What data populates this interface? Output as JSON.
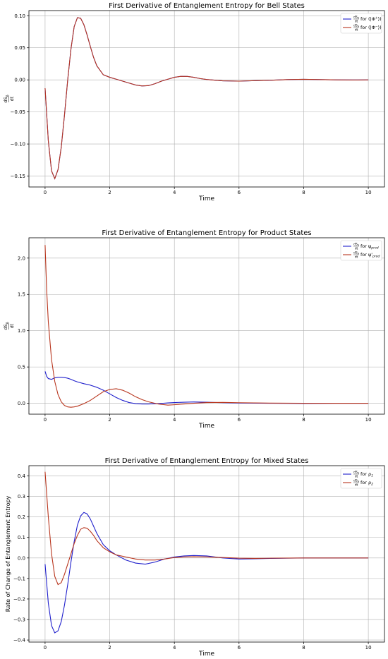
{
  "chart_data": [
    {
      "type": "line",
      "title": "First Derivative of Entanglement Entropy for Bell States",
      "xlabel": "Time",
      "ylabel": "dS_A / dt",
      "xlim": [
        -0.5,
        10.5
      ],
      "ylim": [
        -0.167,
        0.108
      ],
      "xticks": [
        0,
        2,
        4,
        6,
        8,
        10
      ],
      "yticks": [
        -0.15,
        -0.1,
        -0.05,
        0.0,
        0.05,
        0.1
      ],
      "ytick_labels": [
        "−0.15",
        "−0.10",
        "−0.05",
        "0.00",
        "0.05",
        "0.10"
      ],
      "grid": true,
      "legend_position": "top-right",
      "x": [
        0,
        0.1,
        0.2,
        0.3,
        0.4,
        0.5,
        0.6,
        0.7,
        0.8,
        0.9,
        1.0,
        1.1,
        1.2,
        1.3,
        1.4,
        1.5,
        1.6,
        1.8,
        2.0,
        2.2,
        2.4,
        2.6,
        2.8,
        3.0,
        3.2,
        3.4,
        3.6,
        3.8,
        4.0,
        4.2,
        4.4,
        4.6,
        4.8,
        5.0,
        5.5,
        6.0,
        6.5,
        7.0,
        7.5,
        8.0,
        8.5,
        9.0,
        9.5,
        10.0
      ],
      "series": [
        {
          "name": "dS_A/dt for |Φ+⟩",
          "color": "#1f1fcc",
          "values": [
            -0.013,
            -0.095,
            -0.142,
            -0.154,
            -0.14,
            -0.105,
            -0.055,
            0.0,
            0.048,
            0.083,
            0.097,
            0.096,
            0.086,
            0.07,
            0.052,
            0.035,
            0.022,
            0.008,
            0.004,
            0.001,
            -0.002,
            -0.005,
            -0.008,
            -0.0095,
            -0.009,
            -0.006,
            -0.002,
            0.001,
            0.004,
            0.0055,
            0.0053,
            0.004,
            0.002,
            0.0005,
            -0.0015,
            -0.002,
            -0.0012,
            -0.0005,
            0.0004,
            0.0008,
            0.0004,
            0.0,
            -0.0002,
            0.0
          ]
        },
        {
          "name": "dS_A/dt for |Φ−⟩",
          "color": "#b8361e",
          "values": [
            -0.013,
            -0.095,
            -0.142,
            -0.154,
            -0.14,
            -0.105,
            -0.055,
            0.0,
            0.048,
            0.083,
            0.097,
            0.096,
            0.086,
            0.07,
            0.052,
            0.035,
            0.022,
            0.008,
            0.004,
            0.001,
            -0.002,
            -0.005,
            -0.008,
            -0.0095,
            -0.009,
            -0.006,
            -0.002,
            0.001,
            0.004,
            0.0055,
            0.0053,
            0.004,
            0.002,
            0.0005,
            -0.0015,
            -0.002,
            -0.0012,
            -0.0005,
            0.0004,
            0.0008,
            0.0004,
            0.0,
            -0.0002,
            0.0
          ]
        }
      ]
    },
    {
      "type": "line",
      "title": "First Derivative of Entanglement Entropy for Product States",
      "xlabel": "Time",
      "ylabel": "dS_A / dt",
      "xlim": [
        -0.5,
        10.5
      ],
      "ylim": [
        -0.15,
        2.28
      ],
      "xticks": [
        0,
        2,
        4,
        6,
        8,
        10
      ],
      "yticks": [
        0.0,
        0.5,
        1.0,
        1.5,
        2.0
      ],
      "ytick_labels": [
        "0.0",
        "0.5",
        "1.0",
        "1.5",
        "2.0"
      ],
      "grid": true,
      "legend_position": "top-right",
      "x": [
        0,
        0.05,
        0.1,
        0.2,
        0.3,
        0.4,
        0.5,
        0.6,
        0.7,
        0.8,
        0.9,
        1.0,
        1.2,
        1.4,
        1.6,
        1.8,
        2.0,
        2.2,
        2.4,
        2.6,
        2.8,
        3.0,
        3.2,
        3.5,
        3.8,
        4.0,
        4.3,
        4.6,
        5.0,
        5.5,
        6.0,
        7.0,
        8.0,
        9.0,
        10.0
      ],
      "series": [
        {
          "name": "dS_A/dt for ψ_prod",
          "color": "#1f1fcc",
          "values": [
            0.44,
            0.37,
            0.34,
            0.33,
            0.35,
            0.36,
            0.36,
            0.355,
            0.345,
            0.33,
            0.31,
            0.295,
            0.27,
            0.25,
            0.22,
            0.18,
            0.13,
            0.08,
            0.04,
            0.01,
            -0.005,
            -0.01,
            -0.01,
            -0.005,
            0.005,
            0.01,
            0.015,
            0.018,
            0.015,
            0.008,
            0.003,
            0.0,
            -0.002,
            0.0,
            0.0
          ]
        },
        {
          "name": "dS_A/dt for ψ'_prod",
          "color": "#b8361e",
          "values": [
            2.18,
            1.55,
            1.12,
            0.6,
            0.3,
            0.12,
            0.02,
            -0.03,
            -0.05,
            -0.055,
            -0.05,
            -0.04,
            -0.005,
            0.04,
            0.1,
            0.16,
            0.19,
            0.2,
            0.18,
            0.14,
            0.09,
            0.05,
            0.02,
            -0.01,
            -0.025,
            -0.02,
            -0.01,
            0.0,
            0.01,
            0.012,
            0.008,
            0.002,
            0.0,
            0.0,
            0.0
          ]
        }
      ]
    },
    {
      "type": "line",
      "title": "First Derivative of Entanglement Entropy for Mixed States",
      "xlabel": "Time",
      "ylabel": "Rate of Change of Entanglement Entropy",
      "xlim": [
        -0.5,
        10.5
      ],
      "ylim": [
        -0.41,
        0.45
      ],
      "xticks": [
        0,
        2,
        4,
        6,
        8,
        10
      ],
      "yticks": [
        -0.4,
        -0.3,
        -0.2,
        -0.1,
        0.0,
        0.1,
        0.2,
        0.3,
        0.4
      ],
      "ytick_labels": [
        "−0.4",
        "−0.3",
        "−0.2",
        "−0.1",
        "0.0",
        "0.1",
        "0.2",
        "0.3",
        "0.4"
      ],
      "grid": true,
      "legend_position": "top-right",
      "x": [
        0,
        0.1,
        0.2,
        0.3,
        0.4,
        0.5,
        0.6,
        0.7,
        0.8,
        0.9,
        1.0,
        1.1,
        1.2,
        1.3,
        1.4,
        1.5,
        1.6,
        1.8,
        2.0,
        2.2,
        2.5,
        2.8,
        3.1,
        3.4,
        3.7,
        4.0,
        4.3,
        4.6,
        5.0,
        5.5,
        6.0,
        6.5,
        7.0,
        8.0,
        9.0,
        10.0
      ],
      "series": [
        {
          "name": "dS_A/dt for ρ_1",
          "color": "#1f1fcc",
          "values": [
            -0.03,
            -0.22,
            -0.33,
            -0.365,
            -0.355,
            -0.31,
            -0.23,
            -0.13,
            -0.02,
            0.08,
            0.16,
            0.205,
            0.222,
            0.215,
            0.19,
            0.155,
            0.12,
            0.065,
            0.035,
            0.015,
            -0.01,
            -0.025,
            -0.03,
            -0.02,
            -0.005,
            0.005,
            0.01,
            0.012,
            0.01,
            0.0,
            -0.005,
            -0.004,
            -0.002,
            0.0,
            0.0,
            0.0
          ]
        },
        {
          "name": "dS_A/dt for ρ_2",
          "color": "#b8361e",
          "values": [
            0.42,
            0.2,
            0.02,
            -0.09,
            -0.13,
            -0.12,
            -0.08,
            -0.03,
            0.02,
            0.07,
            0.11,
            0.14,
            0.148,
            0.145,
            0.13,
            0.11,
            0.085,
            0.05,
            0.03,
            0.015,
            0.005,
            -0.005,
            -0.01,
            -0.01,
            -0.005,
            0.002,
            0.005,
            0.006,
            0.005,
            0.002,
            -0.001,
            -0.002,
            -0.001,
            0.0,
            0.0,
            0.0
          ]
        }
      ]
    }
  ]
}
